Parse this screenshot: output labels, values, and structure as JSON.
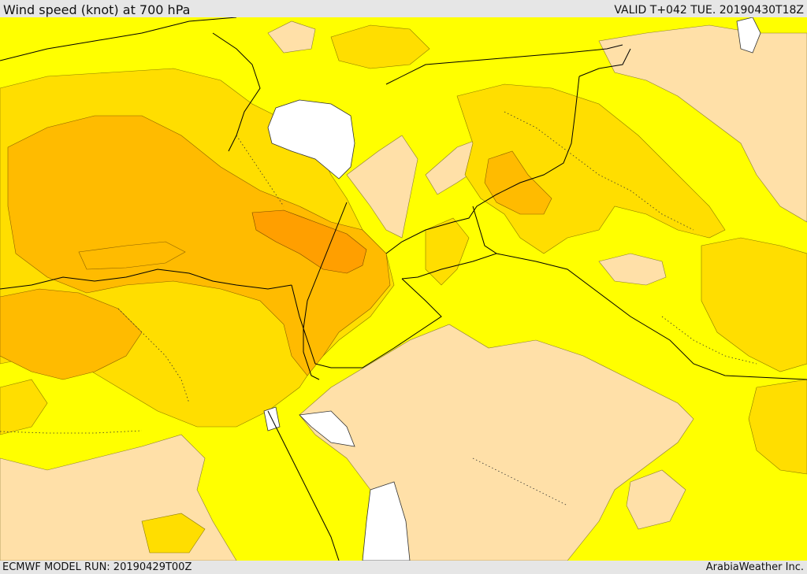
{
  "header": {
    "title": "Wind speed (knot) at 700 hPa",
    "valid_time": "VALID T+042 TUE. 20190430T18Z"
  },
  "footer": {
    "model_run": "ECMWF MODEL RUN: 20190429T00Z",
    "credit": "ArabiaWeather Inc."
  },
  "map": {
    "colors": {
      "calm": "#ffe0a8",
      "light": "#ffff00",
      "moderate": "#ffde00",
      "strong": "#ffbb00",
      "stronger": "#ff9f00",
      "water": "#ffffff",
      "border": "#000000"
    }
  }
}
